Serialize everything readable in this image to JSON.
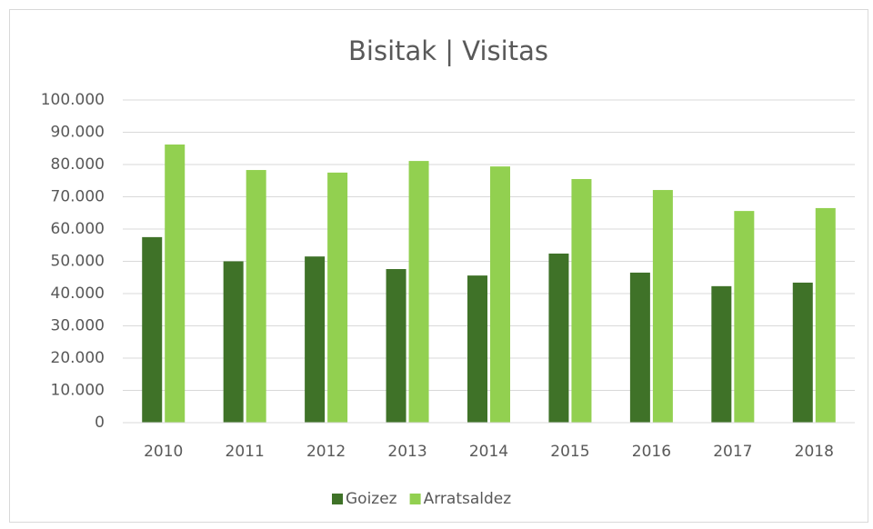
{
  "chart_data": {
    "type": "bar",
    "title": "Bisitak | Visitas",
    "categories": [
      "2010",
      "2011",
      "2012",
      "2013",
      "2014",
      "2015",
      "2016",
      "2017",
      "2018"
    ],
    "series": [
      {
        "name": "Goizez",
        "color": "#3f7228",
        "values": [
          57500,
          50000,
          51500,
          47600,
          45600,
          52400,
          46500,
          42300,
          43400
        ]
      },
      {
        "name": "Arratsaldez",
        "color": "#92d050",
        "values": [
          86200,
          78300,
          77500,
          81100,
          79400,
          75500,
          72100,
          65600,
          66500
        ]
      }
    ],
    "ylim": [
      0,
      100000
    ],
    "yticks": [
      0,
      {
        "value": 10000,
        "label": "10.000"
      },
      {
        "value": 20000,
        "label": "20.000"
      },
      {
        "value": 30000,
        "label": "30.000"
      },
      {
        "value": 40000,
        "label": "40.000"
      },
      {
        "value": 50000,
        "label": "50.000"
      },
      {
        "value": 60000,
        "label": "60.000"
      },
      {
        "value": 70000,
        "label": "70.000"
      },
      {
        "value": 80000,
        "label": "80.000"
      },
      {
        "value": 90000,
        "label": "90.000"
      },
      {
        "value": 100000,
        "label": "100.000"
      }
    ],
    "grid": true,
    "legend": "bottom"
  }
}
